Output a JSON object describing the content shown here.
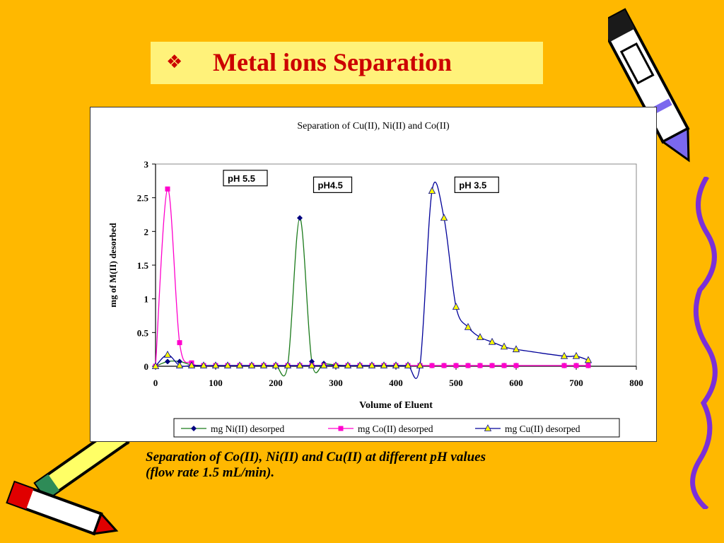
{
  "slide": {
    "title_bullet": "❖",
    "title": "Metal ions Separation",
    "caption_line1": "Separation of Co(II), Ni(II) and Cu(II) at different pH values",
    "caption_line2": "(flow rate 1.5 mL/min).",
    "colors": {
      "background": "#FFB800",
      "title_box": "#FFF27A",
      "title_text": "#CC0000"
    }
  },
  "chart_data": {
    "type": "line",
    "title": "Separation of Cu(II), Ni(II) and Co(II)",
    "xlabel": "Volume of Eluent",
    "ylabel": "mg of M(II) desorbed",
    "xlim": [
      0,
      800
    ],
    "ylim": [
      0,
      3
    ],
    "xticks": [
      "0",
      "100",
      "200",
      "300",
      "400",
      "500",
      "600",
      "700",
      "800"
    ],
    "yticks": [
      "0",
      "0.5",
      "1",
      "1.5",
      "2",
      "2.5",
      "3"
    ],
    "grid": false,
    "legend_position": "bottom",
    "annotations": [
      {
        "text": "pH 5.5",
        "x": 120,
        "y": 2.75
      },
      {
        "text": "pH4.5",
        "x": 270,
        "y": 2.65
      },
      {
        "text": "pH 3.5",
        "x": 505,
        "y": 2.65
      }
    ],
    "series": [
      {
        "name": "mg Ni(II) desorped",
        "color": "#1A7A1A",
        "marker": "diamond",
        "marker_color": "#000080",
        "x": [
          0,
          20,
          40,
          60,
          80,
          100,
          120,
          140,
          160,
          180,
          200,
          220,
          240,
          260,
          280,
          300,
          320,
          340,
          360,
          380,
          400,
          420,
          440,
          460,
          480,
          500,
          520,
          540,
          560,
          580,
          600,
          680,
          700,
          720
        ],
        "y": [
          0,
          0.07,
          0.07,
          0.02,
          0.01,
          0.01,
          0.01,
          0.01,
          0.01,
          0.01,
          0.01,
          0.02,
          2.2,
          0.07,
          0.04,
          0.02,
          0.01,
          0.01,
          0.01,
          0.01,
          0.01,
          0.01,
          0.01,
          0.01,
          0.01,
          0.01,
          0.01,
          0.01,
          0.01,
          0.01,
          0.01,
          0.01,
          0.01,
          0.01
        ]
      },
      {
        "name": "mg Co(II) desorped",
        "color": "#FF00CC",
        "marker": "square",
        "marker_color": "#FF00CC",
        "x": [
          0,
          20,
          40,
          60,
          80,
          100,
          120,
          140,
          160,
          180,
          200,
          220,
          240,
          260,
          280,
          300,
          320,
          340,
          360,
          380,
          400,
          420,
          440,
          460,
          480,
          500,
          520,
          540,
          560,
          580,
          600,
          680,
          700,
          720
        ],
        "y": [
          0,
          2.63,
          0.35,
          0.05,
          0.01,
          0.01,
          0.01,
          0.01,
          0.01,
          0.01,
          0.01,
          0.01,
          0.01,
          0.01,
          0.01,
          0.01,
          0.01,
          0.01,
          0.01,
          0.01,
          0.01,
          0.01,
          0.01,
          0.01,
          0.01,
          0.01,
          0.01,
          0.01,
          0.01,
          0.01,
          0.01,
          0.01,
          0.01,
          0.01
        ]
      },
      {
        "name": "mg Cu(II) desorped",
        "color": "#000099",
        "marker": "triangle",
        "marker_color": "#FFFF00",
        "x": [
          0,
          20,
          40,
          60,
          80,
          100,
          120,
          140,
          160,
          180,
          200,
          220,
          240,
          260,
          280,
          300,
          320,
          340,
          360,
          380,
          400,
          420,
          440,
          460,
          480,
          500,
          520,
          540,
          560,
          580,
          600,
          680,
          700,
          720
        ],
        "y": [
          0,
          0.17,
          0.01,
          0.01,
          0.01,
          0.01,
          0.01,
          0.01,
          0.01,
          0.01,
          0.01,
          0.01,
          0.01,
          0.01,
          0.01,
          0.01,
          0.01,
          0.01,
          0.01,
          0.01,
          0.01,
          0.01,
          0.01,
          2.6,
          2.2,
          0.88,
          0.58,
          0.43,
          0.36,
          0.29,
          0.25,
          0.15,
          0.15,
          0.09
        ]
      }
    ]
  }
}
